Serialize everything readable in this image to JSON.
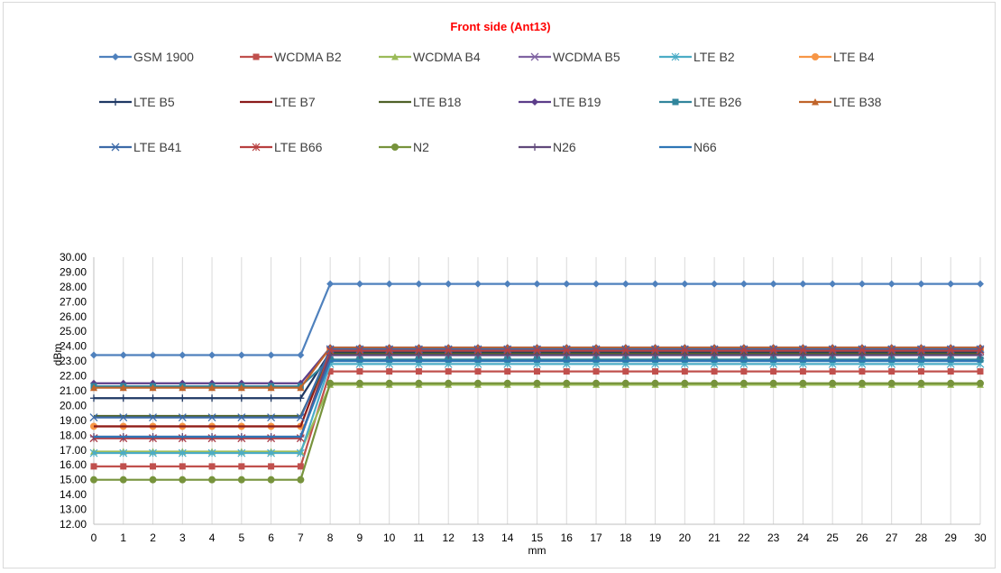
{
  "chart_data": {
    "type": "line",
    "title": "Front side (Ant13)",
    "xlabel": "mm",
    "ylabel": "dBm",
    "x": [
      0,
      1,
      2,
      3,
      4,
      5,
      6,
      7,
      8,
      9,
      10,
      11,
      12,
      13,
      14,
      15,
      16,
      17,
      18,
      19,
      20,
      21,
      22,
      23,
      24,
      25,
      26,
      27,
      28,
      29,
      30
    ],
    "ylim": [
      12,
      30
    ],
    "ytick_step": 1,
    "ytick_format": "2 decimals",
    "grid": "vertical gridlines",
    "legend_position": "top",
    "series": [
      {
        "name": "GSM 1900",
        "color": "#4f81bd",
        "marker": "diamond",
        "before": 23.4,
        "after": 28.2
      },
      {
        "name": "WCDMA B2",
        "color": "#c0504d",
        "marker": "square",
        "before": 15.9,
        "after": 22.3
      },
      {
        "name": "WCDMA B4",
        "color": "#9bbb59",
        "marker": "triangle",
        "before": 16.9,
        "after": 21.4
      },
      {
        "name": "WCDMA B5",
        "color": "#8064a2",
        "marker": "x",
        "before": 17.8,
        "after": 23.4
      },
      {
        "name": "LTE B2",
        "color": "#4bacc6",
        "marker": "asterisk",
        "before": 16.8,
        "after": 22.8
      },
      {
        "name": "LTE B4",
        "color": "#f79646",
        "marker": "circle",
        "before": 18.6,
        "after": 23.8
      },
      {
        "name": "LTE B5",
        "color": "#1f3864",
        "marker": "plus",
        "before": 20.5,
        "after": 23.6
      },
      {
        "name": "LTE B7",
        "color": "#8b1a1a",
        "marker": "none",
        "before": 18.6,
        "after": 23.9
      },
      {
        "name": "LTE B18",
        "color": "#4f6228",
        "marker": "none",
        "before": 19.3,
        "after": 23.5
      },
      {
        "name": "LTE B19",
        "color": "#5c3d8a",
        "marker": "diamond",
        "before": 21.5,
        "after": 23.9
      },
      {
        "name": "LTE B26",
        "color": "#31859c",
        "marker": "square",
        "before": 21.3,
        "after": 23.1
      },
      {
        "name": "LTE B38",
        "color": "#c0642a",
        "marker": "triangle",
        "before": 21.2,
        "after": 23.9
      },
      {
        "name": "LTE B41",
        "color": "#3c6aa8",
        "marker": "x",
        "before": 19.2,
        "after": 23.8
      },
      {
        "name": "LTE B66",
        "color": "#b84040",
        "marker": "asterisk",
        "before": 17.8,
        "after": 23.7
      },
      {
        "name": "N2",
        "color": "#77933c",
        "marker": "circle",
        "before": 15.0,
        "after": 21.5
      },
      {
        "name": "N26",
        "color": "#60497a",
        "marker": "plus",
        "before": 17.9,
        "after": 23.4
      },
      {
        "name": "N66",
        "color": "#2e75b6",
        "marker": "none",
        "before": 17.9,
        "after": 23.0
      }
    ]
  }
}
